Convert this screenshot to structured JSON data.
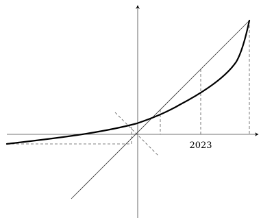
{
  "figure": {
    "tick_label_2023": "2023"
  },
  "colors": {
    "ink": "#000000",
    "axis": "#444444",
    "dashed": "#555555"
  }
}
